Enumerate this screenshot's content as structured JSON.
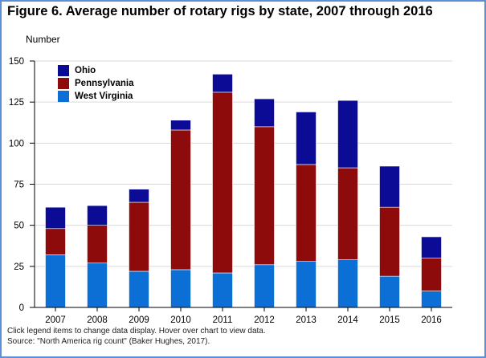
{
  "title": "Figure 6. Average number of rotary rigs by state, 2007 through 2016",
  "notes": {
    "line1": "Click legend items to change data display. Hover over chart to view data.",
    "line2": "Source: \"North America rig count\" (Baker Hughes, 2017)."
  },
  "colors": {
    "Ohio": "#0b0b96",
    "Pennsylvania": "#8e0b0b",
    "West Virginia": "#0b6fd6",
    "frame": "#5b8fd6",
    "grid": "#d9d9d9"
  },
  "chart_data": {
    "type": "bar",
    "stacked": true,
    "title": "Figure 6. Average number of rotary rigs by state, 2007 through 2016",
    "xlabel": "",
    "ylabel": "Number",
    "ylim": [
      0,
      150
    ],
    "yticks": [
      0,
      25,
      50,
      75,
      100,
      125,
      150
    ],
    "grid": true,
    "legend_position": "top-left",
    "categories": [
      "2007",
      "2008",
      "2009",
      "2010",
      "2011",
      "2012",
      "2013",
      "2014",
      "2015",
      "2016"
    ],
    "series": [
      {
        "name": "West Virginia",
        "values": [
          32,
          27,
          22,
          23,
          21,
          26,
          28,
          29,
          19,
          10
        ]
      },
      {
        "name": "Pennsylvania",
        "values": [
          16,
          23,
          42,
          85,
          110,
          84,
          59,
          56,
          42,
          20
        ]
      },
      {
        "name": "Ohio",
        "values": [
          13,
          12,
          8,
          6,
          11,
          17,
          32,
          41,
          25,
          13
        ]
      }
    ],
    "legend_order": [
      "Ohio",
      "Pennsylvania",
      "West Virginia"
    ]
  }
}
